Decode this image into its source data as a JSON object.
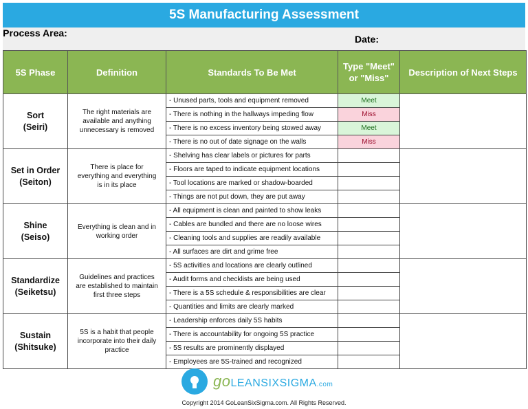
{
  "title": "5S Manufacturing Assessment",
  "info": {
    "process_area_label": "Process Area:",
    "date_label": "Date:"
  },
  "headers": [
    "5S Phase",
    "Definition",
    "Standards To Be Met",
    "Type \"Meet\" or \"Miss\"",
    "Description of Next Steps"
  ],
  "phases": [
    {
      "name": "Sort",
      "sub": "(Seiri)",
      "definition": "The right materials are available and anything unnecessary is removed",
      "standards": [
        "- Unused parts, tools and equipment removed",
        "- There is nothing in the hallways impeding flow",
        "- There is no excess inventory being stowed away",
        "- There is no out of date signage on the walls"
      ],
      "status": [
        "Meet",
        "Miss",
        "Meet",
        "Miss"
      ]
    },
    {
      "name": "Set in Order",
      "sub": "(Seiton)",
      "definition": "There is place for everything and everything is in its place",
      "standards": [
        "- Shelving has clear labels or pictures for parts",
        "- Floors are taped to indicate equipment locations",
        "- Tool locations are marked or shadow-boarded",
        "- Things are not put down, they are put away"
      ],
      "status": [
        "",
        "",
        "",
        ""
      ]
    },
    {
      "name": "Shine",
      "sub": "(Seiso)",
      "definition": "Everything is clean and in working order",
      "standards": [
        "- All equipment is clean and painted to show leaks",
        "- Cables are bundled and there are no loose wires",
        "- Cleaning tools and supplies are readily available",
        "- All surfaces are dirt and grime free"
      ],
      "status": [
        "",
        "",
        "",
        ""
      ]
    },
    {
      "name": "Standardize",
      "sub": "(Seiketsu)",
      "definition": "Guidelines and practices are established to maintain first three steps",
      "standards": [
        "- 5S activities and locations are clearly outlined",
        "- Audit forms and checklists are being used",
        "- There is a 5S schedule & responsibilities are clear",
        "- Quantities and limits are clearly marked"
      ],
      "status": [
        "",
        "",
        "",
        ""
      ]
    },
    {
      "name": "Sustain",
      "sub": "(Shitsuke)",
      "definition": "5S is a habit that people incorporate into their daily practice",
      "standards": [
        "- Leadership enforces daily 5S habits",
        "- There is accountability for ongoing 5S practice",
        "- 5S results are prominently displayed",
        "- Employees are 5S-trained and recognized"
      ],
      "status": [
        "",
        "",
        "",
        ""
      ]
    }
  ],
  "footer": {
    "logo_text": "GoLeanSixSigma.com",
    "brand_go": "go",
    "brand_main": "LEANSIXSIGMA",
    "brand_com": ".com",
    "copyright": "Copyright 2014 GoLeanSixSigma.com. All Rights Reserved."
  },
  "colors": {
    "title_bg": "#2aa9e1",
    "header_bg": "#8bb653",
    "meet_bg": "#d9f5d9",
    "miss_bg": "#fad3dc"
  }
}
